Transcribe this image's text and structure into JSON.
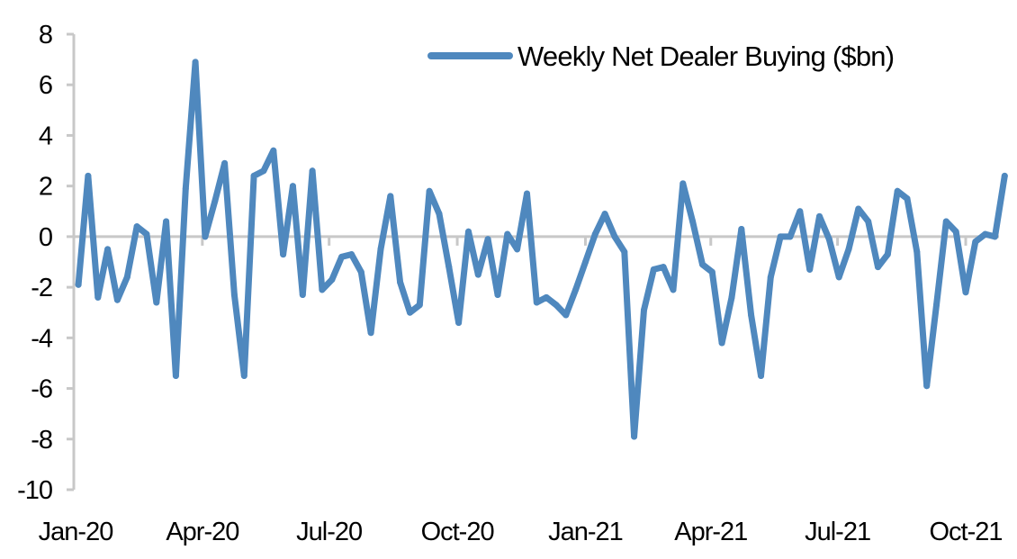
{
  "chart_data": {
    "type": "line",
    "title": "",
    "xlabel": "",
    "ylabel": "",
    "ylim": [
      -10,
      8
    ],
    "y_ticks": [
      8,
      6,
      4,
      2,
      0,
      -2,
      -4,
      -6,
      -8,
      -10
    ],
    "x_ticks": [
      "Jan-20",
      "Apr-20",
      "Jul-20",
      "Oct-20",
      "Jan-21",
      "Apr-21",
      "Jul-21",
      "Oct-21"
    ],
    "grid": false,
    "legend_position": "top-right",
    "series": [
      {
        "name": "Weekly Net Dealer Buying ($bn)",
        "color": "#4F88BE",
        "x": [
          "2020-01-03",
          "2020-01-10",
          "2020-01-17",
          "2020-01-24",
          "2020-01-31",
          "2020-02-07",
          "2020-02-14",
          "2020-02-21",
          "2020-02-28",
          "2020-03-06",
          "2020-03-13",
          "2020-03-20",
          "2020-03-27",
          "2020-04-03",
          "2020-04-10",
          "2020-04-17",
          "2020-04-24",
          "2020-05-01",
          "2020-05-08",
          "2020-05-15",
          "2020-05-22",
          "2020-05-29",
          "2020-06-05",
          "2020-06-12",
          "2020-06-19",
          "2020-06-26",
          "2020-07-03",
          "2020-07-10",
          "2020-07-17",
          "2020-07-24",
          "2020-07-31",
          "2020-08-07",
          "2020-08-14",
          "2020-08-21",
          "2020-08-28",
          "2020-09-04",
          "2020-09-11",
          "2020-09-18",
          "2020-09-25",
          "2020-10-02",
          "2020-10-09",
          "2020-10-16",
          "2020-10-23",
          "2020-10-30",
          "2020-11-06",
          "2020-11-13",
          "2020-11-20",
          "2020-11-27",
          "2020-12-04",
          "2020-12-11",
          "2020-12-18",
          "2020-12-25",
          "2021-01-01",
          "2021-01-08",
          "2021-01-15",
          "2021-01-22",
          "2021-01-29",
          "2021-02-05",
          "2021-02-12",
          "2021-02-19",
          "2021-02-26",
          "2021-03-05",
          "2021-03-12",
          "2021-03-19",
          "2021-03-26",
          "2021-04-02",
          "2021-04-09",
          "2021-04-16",
          "2021-04-23",
          "2021-04-30",
          "2021-05-07",
          "2021-05-14",
          "2021-05-21",
          "2021-05-28",
          "2021-06-04",
          "2021-06-11",
          "2021-06-18",
          "2021-06-25",
          "2021-07-02",
          "2021-07-09",
          "2021-07-16",
          "2021-07-23",
          "2021-07-30",
          "2021-08-06",
          "2021-08-13",
          "2021-08-20",
          "2021-08-27",
          "2021-09-03",
          "2021-09-10",
          "2021-09-17",
          "2021-09-24",
          "2021-10-01",
          "2021-10-08",
          "2021-10-15",
          "2021-10-22",
          "2021-10-29"
        ],
        "values": [
          -1.9,
          2.4,
          -2.4,
          -0.5,
          -2.5,
          -1.6,
          0.4,
          0.1,
          -2.6,
          0.6,
          -5.5,
          1.9,
          6.9,
          0.0,
          1.4,
          2.9,
          -2.3,
          -5.5,
          2.4,
          2.6,
          3.4,
          -0.7,
          2.0,
          -2.3,
          2.6,
          -2.1,
          -1.7,
          -0.8,
          -0.7,
          -1.4,
          -3.8,
          -0.5,
          1.6,
          -1.8,
          -3.0,
          -2.7,
          1.8,
          0.9,
          -1.2,
          -3.4,
          0.2,
          -1.5,
          -0.1,
          -2.3,
          0.1,
          -0.5,
          1.7,
          -2.6,
          -2.4,
          -2.7,
          -3.1,
          -2.1,
          -1.0,
          0.1,
          0.9,
          0.0,
          -0.6,
          -7.9,
          -2.9,
          -1.3,
          -1.2,
          -2.1,
          2.1,
          0.6,
          -1.1,
          -1.4,
          -4.2,
          -2.4,
          0.3,
          -3.1,
          -5.5,
          -1.6,
          0.0,
          0.0,
          1.0,
          -1.3,
          0.8,
          -0.1,
          -1.6,
          -0.5,
          1.1,
          0.6,
          -1.2,
          -0.7,
          1.8,
          1.5,
          -0.6,
          -5.9,
          -2.7,
          0.6,
          0.2,
          -2.2,
          -0.2,
          0.1,
          0.0,
          2.4
        ]
      }
    ]
  }
}
